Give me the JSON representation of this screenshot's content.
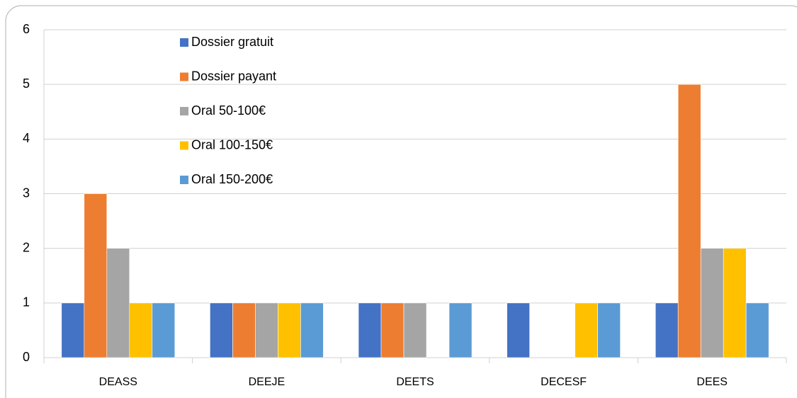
{
  "chart_data": {
    "type": "bar",
    "categories": [
      "DEASS",
      "DEEJE",
      "DEETS",
      "DECESF",
      "DEES"
    ],
    "series": [
      {
        "name": "Dossier gratuit",
        "color": "#4472c4",
        "values": [
          1,
          1,
          1,
          1,
          1
        ]
      },
      {
        "name": "Dossier payant",
        "color": "#ed7d31",
        "values": [
          3,
          1,
          1,
          0,
          5
        ]
      },
      {
        "name": "Oral 50-100€",
        "color": "#a5a5a5",
        "values": [
          2,
          1,
          1,
          0,
          2
        ]
      },
      {
        "name": "Oral 100-150€",
        "color": "#ffc000",
        "values": [
          1,
          1,
          0,
          1,
          2
        ]
      },
      {
        "name": "Oral 150-200€",
        "color": "#5b9bd5",
        "values": [
          1,
          1,
          1,
          1,
          1
        ]
      }
    ],
    "ylim": [
      0,
      6
    ],
    "yticks": [
      0,
      1,
      2,
      3,
      4,
      5,
      6
    ],
    "grid": true,
    "legend": "top-left"
  }
}
